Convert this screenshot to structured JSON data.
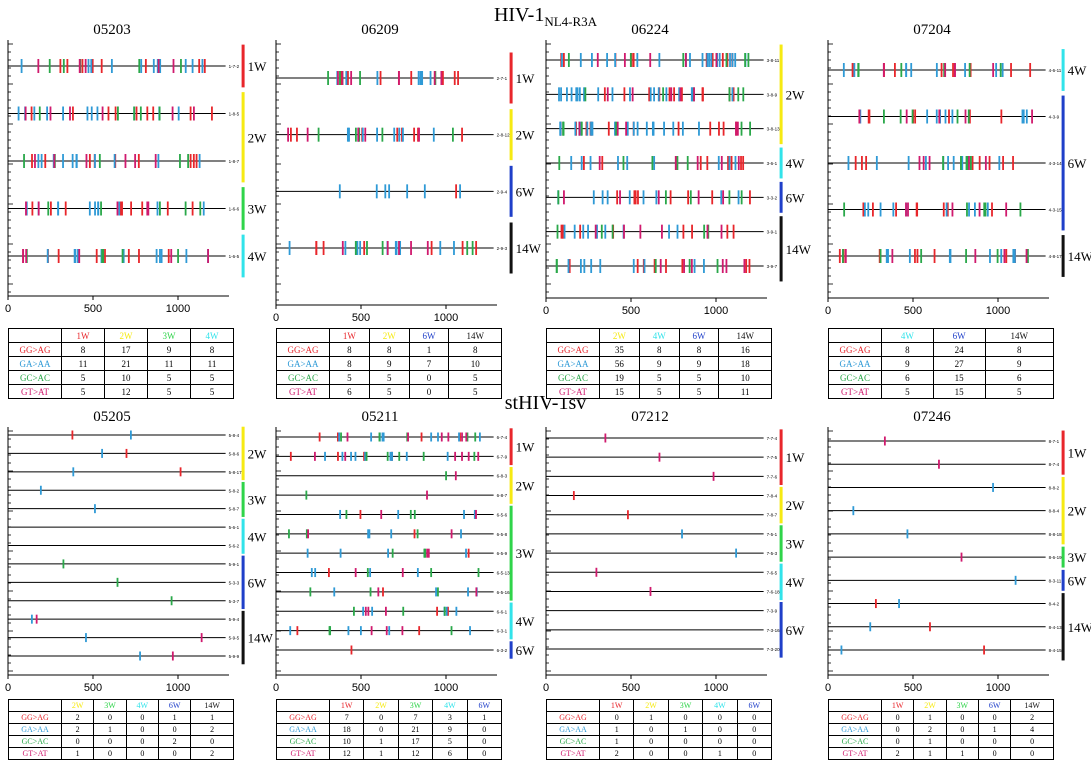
{
  "titles": {
    "top_main": "HIV-1",
    "top_sub": "NL4-R3A",
    "bottom": "stHIV-1sv"
  },
  "colors": {
    "GG>AG": "#e8262b",
    "GA>AA": "#2f9ad6",
    "GC>AC": "#2aa84a",
    "GT>AT": "#d01a6e",
    "1W": "#e8262b",
    "2W": "#f6ea12",
    "3W": "#2fd44a",
    "4W": "#31e3ea",
    "6W": "#1f3fc9",
    "14W": "#111111"
  },
  "chart_data": [
    {
      "type": "table",
      "panel": "05203",
      "title": "05203",
      "xticks": [
        "0",
        "500",
        "1000"
      ],
      "xlim": [
        0,
        1300
      ],
      "seq_labels": [
        "1-7-2",
        "1-8-5",
        "1-8-7",
        "1-6-6",
        "1-6-5"
      ],
      "week_brackets": [
        {
          "label": "1W",
          "rows": [
            0,
            0
          ]
        },
        {
          "label": "2W",
          "rows": [
            1,
            2
          ]
        },
        {
          "label": "3W",
          "rows": [
            3,
            3
          ]
        },
        {
          "label": "4W",
          "rows": [
            4,
            4
          ]
        }
      ],
      "columns": [
        "1W",
        "2W",
        "3W",
        "4W"
      ],
      "rows": [
        {
          "label": "GG>AG",
          "values": [
            "8",
            "17",
            "9",
            "8"
          ]
        },
        {
          "label": "GA>AA",
          "values": [
            "11",
            "21",
            "11",
            "11"
          ]
        },
        {
          "label": "GC>AC",
          "values": [
            "5",
            "10",
            "5",
            "5"
          ]
        },
        {
          "label": "GT>AT",
          "values": [
            "5",
            "12",
            "5",
            "5"
          ]
        }
      ]
    },
    {
      "type": "table",
      "panel": "06209",
      "title": "06209",
      "xticks": [
        "0",
        "500",
        "1000"
      ],
      "xlim": [
        0,
        1300
      ],
      "seq_labels": [
        "2-7-1",
        "2-8-12",
        "2-9-4",
        "2-9-3"
      ],
      "week_brackets": [
        {
          "label": "1W",
          "rows": [
            0,
            0
          ]
        },
        {
          "label": "2W",
          "rows": [
            1,
            1
          ]
        },
        {
          "label": "6W",
          "rows": [
            2,
            2
          ]
        },
        {
          "label": "14W",
          "rows": [
            3,
            3
          ]
        }
      ],
      "columns": [
        "1W",
        "2W",
        "6W",
        "14W"
      ],
      "rows": [
        {
          "label": "GG>AG",
          "values": [
            "8",
            "8",
            "1",
            "8"
          ]
        },
        {
          "label": "GA>AA",
          "values": [
            "8",
            "9",
            "7",
            "10"
          ]
        },
        {
          "label": "GC>AC",
          "values": [
            "5",
            "5",
            "0",
            "5"
          ]
        },
        {
          "label": "GT>AT",
          "values": [
            "6",
            "5",
            "0",
            "5"
          ]
        }
      ]
    },
    {
      "type": "table",
      "panel": "06224",
      "title": "06224",
      "xticks": [
        "0",
        "500",
        "1000"
      ],
      "xlim": [
        0,
        1300
      ],
      "seq_labels": [
        "3-8-11",
        "3-8-9",
        "3-8-13",
        "3-6-1",
        "3-3-2",
        "3-9-1",
        "3-9-7"
      ],
      "week_brackets": [
        {
          "label": "2W",
          "rows": [
            0,
            2
          ]
        },
        {
          "label": "4W",
          "rows": [
            3,
            3
          ]
        },
        {
          "label": "6W",
          "rows": [
            4,
            4
          ]
        },
        {
          "label": "14W",
          "rows": [
            5,
            6
          ]
        }
      ],
      "columns": [
        "2W",
        "4W",
        "6W",
        "14W"
      ],
      "rows": [
        {
          "label": "GG>AG",
          "values": [
            "35",
            "8",
            "8",
            "16"
          ]
        },
        {
          "label": "GA>AA",
          "values": [
            "56",
            "9",
            "9",
            "18"
          ]
        },
        {
          "label": "GC>AC",
          "values": [
            "19",
            "5",
            "5",
            "10"
          ]
        },
        {
          "label": "GT>AT",
          "values": [
            "15",
            "5",
            "5",
            "11"
          ]
        }
      ]
    },
    {
      "type": "table",
      "panel": "07204",
      "title": "07204",
      "xticks": [
        "0",
        "500",
        "1000"
      ],
      "xlim": [
        0,
        1300
      ],
      "seq_labels": [
        "4-6-11",
        "4-3-9",
        "4-3-14",
        "4-3-15",
        "4-8-17"
      ],
      "week_brackets": [
        {
          "label": "4W",
          "rows": [
            0,
            0
          ]
        },
        {
          "label": "6W",
          "rows": [
            1,
            3
          ]
        },
        {
          "label": "14W",
          "rows": [
            4,
            4
          ]
        }
      ],
      "columns": [
        "4W",
        "6W",
        "14W"
      ],
      "rows": [
        {
          "label": "GG>AG",
          "values": [
            "8",
            "24",
            "8"
          ]
        },
        {
          "label": "GA>AA",
          "values": [
            "9",
            "27",
            "9"
          ]
        },
        {
          "label": "GC>AC",
          "values": [
            "6",
            "15",
            "6"
          ]
        },
        {
          "label": "GT>AT",
          "values": [
            "5",
            "15",
            "5"
          ]
        }
      ]
    },
    {
      "type": "table",
      "panel": "05205",
      "title": "05205",
      "xticks": [
        "0",
        "500",
        "1000"
      ],
      "xlim": [
        0,
        1300
      ],
      "seq_labels": [
        "5-8-4",
        "5-8-6",
        "5-8-17",
        "5-8-2",
        "5-8-7",
        "5-6-1",
        "5-6-2",
        "5-9-1",
        "5-3-3",
        "5-3-7",
        "5-9-4",
        "5-9-5",
        "5-9-9"
      ],
      "week_brackets": [
        {
          "label": "2W",
          "rows": [
            0,
            2
          ]
        },
        {
          "label": "3W",
          "rows": [
            3,
            4
          ]
        },
        {
          "label": "4W",
          "rows": [
            5,
            6
          ]
        },
        {
          "label": "6W",
          "rows": [
            7,
            9
          ]
        },
        {
          "label": "14W",
          "rows": [
            10,
            12
          ]
        }
      ],
      "columns": [
        "2W",
        "3W",
        "4W",
        "6W",
        "14W"
      ],
      "rows": [
        {
          "label": "GG>AG",
          "values": [
            "2",
            "0",
            "0",
            "1",
            "1"
          ]
        },
        {
          "label": "GA>AA",
          "values": [
            "2",
            "1",
            "0",
            "0",
            "2"
          ]
        },
        {
          "label": "GC>AC",
          "values": [
            "0",
            "0",
            "0",
            "2",
            "0"
          ]
        },
        {
          "label": "GT>AT",
          "values": [
            "1",
            "0",
            "0",
            "0",
            "2"
          ]
        }
      ]
    },
    {
      "type": "table",
      "panel": "05211",
      "title": "05211",
      "xticks": [
        "0",
        "500",
        "1000"
      ],
      "xlim": [
        0,
        1300
      ],
      "seq_labels": [
        "6-7-4",
        "6-7-9",
        "6-8-3",
        "6-8-7",
        "6-5-6",
        "6-5-8",
        "6-5-9",
        "6-5-13",
        "6-5-16",
        "6-6-1",
        "6-3-1",
        "6-3-2"
      ],
      "week_brackets": [
        {
          "label": "1W",
          "rows": [
            0,
            1
          ]
        },
        {
          "label": "2W",
          "rows": [
            2,
            3
          ]
        },
        {
          "label": "3W",
          "rows": [
            4,
            8
          ]
        },
        {
          "label": "4W",
          "rows": [
            9,
            10
          ]
        },
        {
          "label": "6W",
          "rows": [
            11,
            11
          ]
        }
      ],
      "columns": [
        "1W",
        "2W",
        "3W",
        "4W",
        "6W"
      ],
      "rows": [
        {
          "label": "GG>AG",
          "values": [
            "7",
            "0",
            "7",
            "3",
            "1"
          ]
        },
        {
          "label": "GA>AA",
          "values": [
            "18",
            "0",
            "21",
            "9",
            "0"
          ]
        },
        {
          "label": "GC>AC",
          "values": [
            "10",
            "1",
            "17",
            "5",
            "0"
          ]
        },
        {
          "label": "GT>AT",
          "values": [
            "12",
            "1",
            "12",
            "6",
            "0"
          ]
        }
      ]
    },
    {
      "type": "table",
      "panel": "07212",
      "title": "07212",
      "xticks": [
        "0",
        "500",
        "1000"
      ],
      "xlim": [
        0,
        1300
      ],
      "seq_labels": [
        "7-7-4",
        "7-7-5",
        "7-7-6",
        "7-8-4",
        "7-8-7",
        "7-5-1",
        "7-5-3",
        "7-6-5",
        "7-6-18",
        "7-3-9",
        "7-3-16",
        "7-3-20"
      ],
      "week_brackets": [
        {
          "label": "1W",
          "rows": [
            0,
            2
          ]
        },
        {
          "label": "2W",
          "rows": [
            3,
            4
          ]
        },
        {
          "label": "3W",
          "rows": [
            5,
            6
          ]
        },
        {
          "label": "4W",
          "rows": [
            7,
            8
          ]
        },
        {
          "label": "6W",
          "rows": [
            9,
            11
          ]
        }
      ],
      "columns": [
        "1W",
        "2W",
        "3W",
        "4W",
        "6W"
      ],
      "rows": [
        {
          "label": "GG>AG",
          "values": [
            "0",
            "1",
            "0",
            "0",
            "0"
          ]
        },
        {
          "label": "GA>AA",
          "values": [
            "1",
            "0",
            "1",
            "0",
            "0"
          ]
        },
        {
          "label": "GC>AC",
          "values": [
            "1",
            "0",
            "0",
            "0",
            "0"
          ]
        },
        {
          "label": "GT>AT",
          "values": [
            "2",
            "0",
            "0",
            "1",
            "0"
          ]
        }
      ]
    },
    {
      "type": "table",
      "panel": "07246",
      "title": "07246",
      "xticks": [
        "0",
        "500",
        "1000"
      ],
      "xlim": [
        0,
        1300
      ],
      "seq_labels": [
        "8-7-1",
        "8-7-4",
        "8-8-2",
        "8-8-4",
        "8-8-18",
        "8-6-19",
        "8-3-11",
        "8-4-2",
        "8-4-13",
        "8-4-15"
      ],
      "week_brackets": [
        {
          "label": "1W",
          "rows": [
            0,
            1
          ]
        },
        {
          "label": "2W",
          "rows": [
            2,
            4
          ]
        },
        {
          "label": "3W",
          "rows": [
            5,
            5
          ]
        },
        {
          "label": "6W",
          "rows": [
            6,
            6
          ]
        },
        {
          "label": "14W",
          "rows": [
            7,
            9
          ]
        }
      ],
      "columns": [
        "1W",
        "2W",
        "3W",
        "6W",
        "14W"
      ],
      "rows": [
        {
          "label": "GG>AG",
          "values": [
            "0",
            "1",
            "0",
            "0",
            "2"
          ]
        },
        {
          "label": "GA>AA",
          "values": [
            "0",
            "2",
            "0",
            "1",
            "4"
          ]
        },
        {
          "label": "GC>AC",
          "values": [
            "0",
            "1",
            "0",
            "0",
            "0"
          ]
        },
        {
          "label": "GT>AT",
          "values": [
            "2",
            "1",
            "1",
            "0",
            "0"
          ]
        }
      ]
    }
  ]
}
